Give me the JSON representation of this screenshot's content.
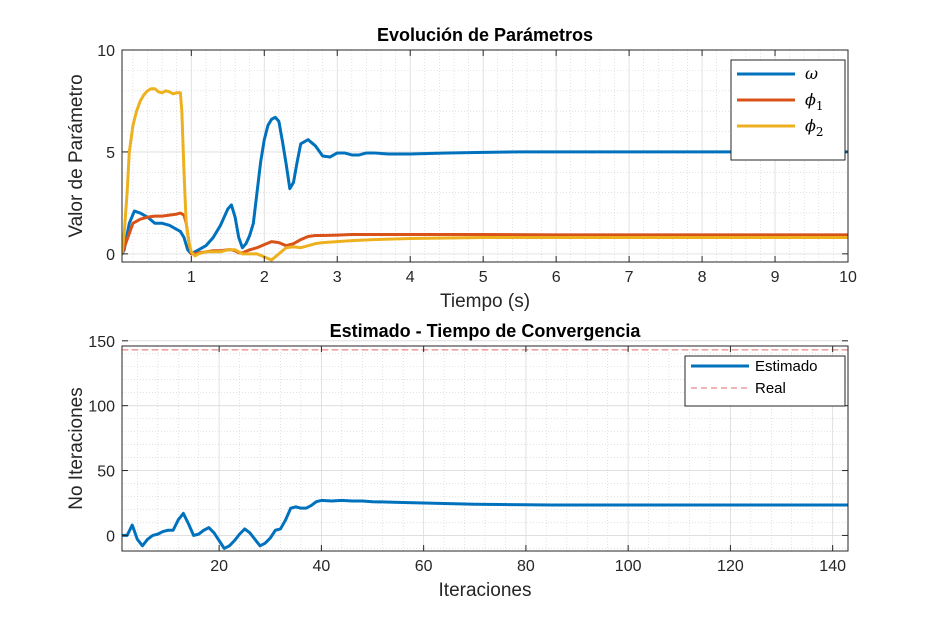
{
  "chart_data": [
    {
      "type": "line",
      "title": "Evolución de Parámetros",
      "xlabel": "Tiempo (s)",
      "ylabel": "Valor de Parámetro",
      "xlim": [
        0.05,
        10
      ],
      "ylim": [
        -0.4,
        10
      ],
      "xticks": [
        1,
        2,
        3,
        4,
        5,
        6,
        7,
        8,
        9,
        10
      ],
      "xtick_labels": [
        "1",
        "2",
        "3",
        "4",
        "5",
        "6",
        "7",
        "8",
        "9",
        "10"
      ],
      "yticks": [
        0,
        5,
        10
      ],
      "ytick_labels": [
        "0",
        "5",
        "10"
      ],
      "grid": true,
      "minor_grid": true,
      "legend_position": "top-right",
      "series": [
        {
          "name": "ω",
          "legend_symbol": "ω",
          "legend_subscript": "",
          "color": "#0072BD",
          "x": [
            0.05,
            0.08,
            0.15,
            0.22,
            0.3,
            0.4,
            0.5,
            0.6,
            0.7,
            0.8,
            0.85,
            0.9,
            0.95,
            1.0,
            1.05,
            1.1,
            1.2,
            1.3,
            1.4,
            1.5,
            1.55,
            1.6,
            1.65,
            1.7,
            1.75,
            1.8,
            1.85,
            1.9,
            1.95,
            2.0,
            2.05,
            2.1,
            2.15,
            2.2,
            2.25,
            2.3,
            2.35,
            2.4,
            2.45,
            2.5,
            2.6,
            2.7,
            2.8,
            2.9,
            3.0,
            3.1,
            3.2,
            3.3,
            3.4,
            3.5,
            3.7,
            4.0,
            4.5,
            5.0,
            5.5,
            6.0,
            7.0,
            8.0,
            9.0,
            10.0
          ],
          "y": [
            0,
            0.2,
            1.5,
            2.1,
            2.0,
            1.8,
            1.5,
            1.5,
            1.4,
            1.2,
            1.1,
            0.8,
            0.2,
            0.0,
            0.1,
            0.2,
            0.4,
            0.8,
            1.4,
            2.2,
            2.4,
            1.8,
            0.8,
            0.3,
            0.5,
            0.9,
            1.5,
            3.0,
            4.5,
            5.6,
            6.3,
            6.6,
            6.7,
            6.5,
            5.5,
            4.4,
            3.2,
            3.5,
            4.5,
            5.4,
            5.6,
            5.3,
            4.8,
            4.75,
            4.95,
            4.95,
            4.85,
            4.85,
            4.95,
            4.95,
            4.9,
            4.9,
            4.95,
            4.98,
            5.0,
            5.0,
            5.0,
            5.0,
            5.0,
            5.0
          ]
        },
        {
          "name": "ϕ1",
          "legend_symbol": "ϕ",
          "legend_subscript": "1",
          "color": "#D95319",
          "x": [
            0.05,
            0.1,
            0.2,
            0.3,
            0.4,
            0.5,
            0.6,
            0.7,
            0.8,
            0.85,
            0.9,
            0.93,
            0.97,
            1.0,
            1.05,
            1.1,
            1.2,
            1.3,
            1.4,
            1.5,
            1.55,
            1.6,
            1.65,
            1.7,
            1.8,
            1.9,
            2.0,
            2.1,
            2.2,
            2.3,
            2.4,
            2.5,
            2.6,
            2.7,
            2.8,
            3.0,
            3.2,
            3.5,
            4.0,
            5.0,
            6.0,
            7.0,
            8.0,
            9.0,
            10.0
          ],
          "y": [
            0,
            0.5,
            1.5,
            1.7,
            1.8,
            1.85,
            1.85,
            1.9,
            1.95,
            2.0,
            1.9,
            1.5,
            0.5,
            0.0,
            0.0,
            0.05,
            0.1,
            0.15,
            0.15,
            0.2,
            0.2,
            0.15,
            0.05,
            0.05,
            0.2,
            0.3,
            0.45,
            0.6,
            0.55,
            0.4,
            0.5,
            0.7,
            0.85,
            0.9,
            0.9,
            0.92,
            0.95,
            0.95,
            0.95,
            0.95,
            0.93,
            0.93,
            0.93,
            0.93,
            0.93
          ]
        },
        {
          "name": "ϕ2",
          "legend_symbol": "ϕ",
          "legend_subscript": "2",
          "color": "#EDB120",
          "x": [
            0.05,
            0.08,
            0.12,
            0.15,
            0.2,
            0.25,
            0.3,
            0.35,
            0.4,
            0.45,
            0.5,
            0.55,
            0.6,
            0.65,
            0.7,
            0.75,
            0.8,
            0.85,
            0.87,
            0.9,
            0.93,
            0.97,
            1.0,
            1.05,
            1.1,
            1.2,
            1.3,
            1.4,
            1.5,
            1.6,
            1.7,
            1.8,
            1.9,
            2.0,
            2.1,
            2.2,
            2.3,
            2.4,
            2.5,
            2.6,
            2.7,
            2.8,
            3.0,
            3.2,
            3.5,
            4.0,
            5.0,
            6.0,
            7.0,
            8.0,
            9.0,
            10.0
          ],
          "y": [
            0,
            1.0,
            3.0,
            5.0,
            6.3,
            7.0,
            7.5,
            7.8,
            8.0,
            8.1,
            8.1,
            7.95,
            7.9,
            8.0,
            7.95,
            7.85,
            7.9,
            7.9,
            7.0,
            4.0,
            1.5,
            0.5,
            0.1,
            -0.1,
            0.0,
            0.1,
            0.1,
            0.1,
            0.2,
            0.2,
            0.0,
            0.0,
            0.0,
            -0.15,
            -0.3,
            0.0,
            0.3,
            0.35,
            0.3,
            0.4,
            0.5,
            0.55,
            0.6,
            0.65,
            0.7,
            0.75,
            0.8,
            0.8,
            0.8,
            0.8,
            0.8,
            0.8
          ]
        }
      ]
    },
    {
      "type": "line",
      "title": "Estimado - Tiempo de Convergencia",
      "xlabel": "Iteraciones",
      "ylabel": "No Iteraciones",
      "xlim": [
        1,
        143
      ],
      "ylim": [
        -12,
        146
      ],
      "xticks": [
        20,
        40,
        60,
        80,
        100,
        120,
        140
      ],
      "xtick_labels": [
        "20",
        "40",
        "60",
        "80",
        "100",
        "120",
        "140"
      ],
      "yticks": [
        0,
        50,
        100,
        150
      ],
      "ytick_labels": [
        "0",
        "50",
        "100",
        "150"
      ],
      "grid": true,
      "minor_grid": true,
      "legend_position": "top-right",
      "series": [
        {
          "name": "Estimado",
          "color": "#0072BD",
          "style": "solid",
          "x": [
            1,
            2,
            3,
            4,
            5,
            6,
            7,
            8,
            9,
            10,
            11,
            12,
            13,
            14,
            15,
            16,
            17,
            18,
            19,
            20,
            21,
            22,
            23,
            24,
            25,
            26,
            27,
            28,
            29,
            30,
            31,
            32,
            33,
            34,
            35,
            36,
            37,
            38,
            39,
            40,
            42,
            44,
            46,
            48,
            50,
            55,
            60,
            65,
            70,
            75,
            80,
            85,
            90,
            95,
            100,
            110,
            120,
            130,
            143
          ],
          "y": [
            0,
            0,
            8,
            -3,
            -8,
            -3,
            0,
            1,
            3,
            4,
            4,
            12,
            17,
            9,
            0,
            1,
            4,
            6,
            2,
            -4,
            -10,
            -8,
            -4,
            1,
            5,
            2,
            -3,
            -8,
            -6,
            -2,
            4,
            5,
            12,
            21,
            22,
            21,
            21,
            23,
            26,
            27,
            26.5,
            27,
            26.5,
            26.5,
            26,
            25.5,
            25,
            24.5,
            24,
            23.8,
            23.6,
            23.5,
            23.5,
            23.5,
            23.5,
            23.5,
            23.5,
            23.5,
            23.5
          ]
        },
        {
          "name": "Real",
          "color": "#E06A6A",
          "style": "dashed",
          "x": [
            1,
            143
          ],
          "y": [
            143,
            143
          ]
        }
      ]
    }
  ]
}
